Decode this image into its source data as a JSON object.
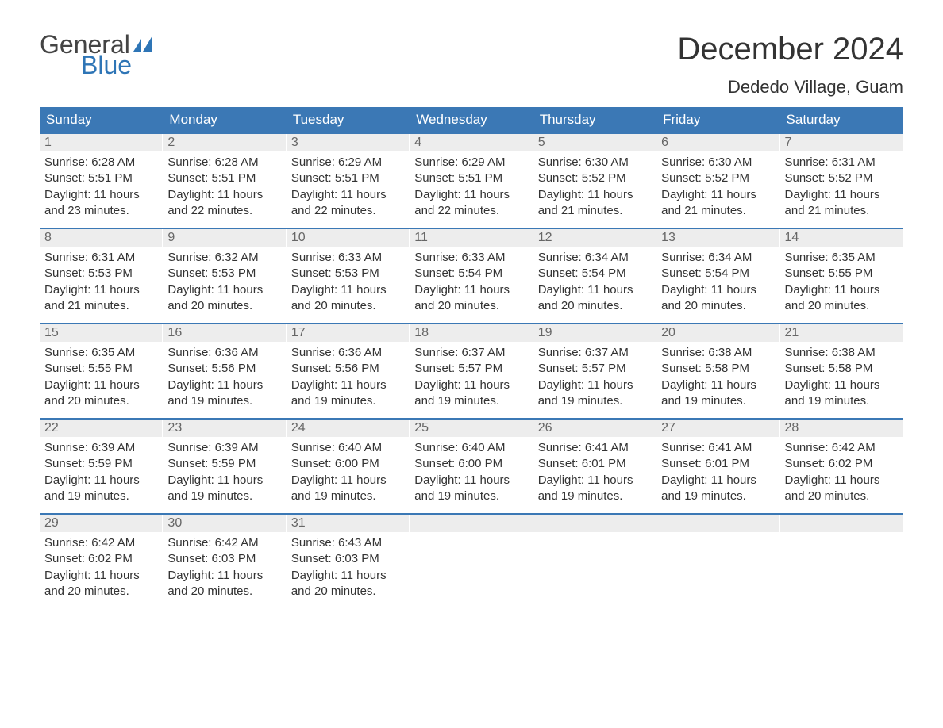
{
  "logo": {
    "text1": "General",
    "text2": "Blue"
  },
  "title": "December 2024",
  "location": "Dededo Village, Guam",
  "colors": {
    "header_bg": "#3b78b5",
    "header_text": "#ffffff",
    "daynum_bg": "#ededed",
    "daynum_text": "#666666",
    "body_text": "#333333",
    "week_border": "#3b78b5",
    "logo_blue": "#2e75b6"
  },
  "weekdays": [
    "Sunday",
    "Monday",
    "Tuesday",
    "Wednesday",
    "Thursday",
    "Friday",
    "Saturday"
  ],
  "weeks": [
    [
      {
        "n": "1",
        "sunrise": "6:28 AM",
        "sunset": "5:51 PM",
        "daylight": "11 hours and 23 minutes."
      },
      {
        "n": "2",
        "sunrise": "6:28 AM",
        "sunset": "5:51 PM",
        "daylight": "11 hours and 22 minutes."
      },
      {
        "n": "3",
        "sunrise": "6:29 AM",
        "sunset": "5:51 PM",
        "daylight": "11 hours and 22 minutes."
      },
      {
        "n": "4",
        "sunrise": "6:29 AM",
        "sunset": "5:51 PM",
        "daylight": "11 hours and 22 minutes."
      },
      {
        "n": "5",
        "sunrise": "6:30 AM",
        "sunset": "5:52 PM",
        "daylight": "11 hours and 21 minutes."
      },
      {
        "n": "6",
        "sunrise": "6:30 AM",
        "sunset": "5:52 PM",
        "daylight": "11 hours and 21 minutes."
      },
      {
        "n": "7",
        "sunrise": "6:31 AM",
        "sunset": "5:52 PM",
        "daylight": "11 hours and 21 minutes."
      }
    ],
    [
      {
        "n": "8",
        "sunrise": "6:31 AM",
        "sunset": "5:53 PM",
        "daylight": "11 hours and 21 minutes."
      },
      {
        "n": "9",
        "sunrise": "6:32 AM",
        "sunset": "5:53 PM",
        "daylight": "11 hours and 20 minutes."
      },
      {
        "n": "10",
        "sunrise": "6:33 AM",
        "sunset": "5:53 PM",
        "daylight": "11 hours and 20 minutes."
      },
      {
        "n": "11",
        "sunrise": "6:33 AM",
        "sunset": "5:54 PM",
        "daylight": "11 hours and 20 minutes."
      },
      {
        "n": "12",
        "sunrise": "6:34 AM",
        "sunset": "5:54 PM",
        "daylight": "11 hours and 20 minutes."
      },
      {
        "n": "13",
        "sunrise": "6:34 AM",
        "sunset": "5:54 PM",
        "daylight": "11 hours and 20 minutes."
      },
      {
        "n": "14",
        "sunrise": "6:35 AM",
        "sunset": "5:55 PM",
        "daylight": "11 hours and 20 minutes."
      }
    ],
    [
      {
        "n": "15",
        "sunrise": "6:35 AM",
        "sunset": "5:55 PM",
        "daylight": "11 hours and 20 minutes."
      },
      {
        "n": "16",
        "sunrise": "6:36 AM",
        "sunset": "5:56 PM",
        "daylight": "11 hours and 19 minutes."
      },
      {
        "n": "17",
        "sunrise": "6:36 AM",
        "sunset": "5:56 PM",
        "daylight": "11 hours and 19 minutes."
      },
      {
        "n": "18",
        "sunrise": "6:37 AM",
        "sunset": "5:57 PM",
        "daylight": "11 hours and 19 minutes."
      },
      {
        "n": "19",
        "sunrise": "6:37 AM",
        "sunset": "5:57 PM",
        "daylight": "11 hours and 19 minutes."
      },
      {
        "n": "20",
        "sunrise": "6:38 AM",
        "sunset": "5:58 PM",
        "daylight": "11 hours and 19 minutes."
      },
      {
        "n": "21",
        "sunrise": "6:38 AM",
        "sunset": "5:58 PM",
        "daylight": "11 hours and 19 minutes."
      }
    ],
    [
      {
        "n": "22",
        "sunrise": "6:39 AM",
        "sunset": "5:59 PM",
        "daylight": "11 hours and 19 minutes."
      },
      {
        "n": "23",
        "sunrise": "6:39 AM",
        "sunset": "5:59 PM",
        "daylight": "11 hours and 19 minutes."
      },
      {
        "n": "24",
        "sunrise": "6:40 AM",
        "sunset": "6:00 PM",
        "daylight": "11 hours and 19 minutes."
      },
      {
        "n": "25",
        "sunrise": "6:40 AM",
        "sunset": "6:00 PM",
        "daylight": "11 hours and 19 minutes."
      },
      {
        "n": "26",
        "sunrise": "6:41 AM",
        "sunset": "6:01 PM",
        "daylight": "11 hours and 19 minutes."
      },
      {
        "n": "27",
        "sunrise": "6:41 AM",
        "sunset": "6:01 PM",
        "daylight": "11 hours and 19 minutes."
      },
      {
        "n": "28",
        "sunrise": "6:42 AM",
        "sunset": "6:02 PM",
        "daylight": "11 hours and 20 minutes."
      }
    ],
    [
      {
        "n": "29",
        "sunrise": "6:42 AM",
        "sunset": "6:02 PM",
        "daylight": "11 hours and 20 minutes."
      },
      {
        "n": "30",
        "sunrise": "6:42 AM",
        "sunset": "6:03 PM",
        "daylight": "11 hours and 20 minutes."
      },
      {
        "n": "31",
        "sunrise": "6:43 AM",
        "sunset": "6:03 PM",
        "daylight": "11 hours and 20 minutes."
      },
      null,
      null,
      null,
      null
    ]
  ],
  "labels": {
    "sunrise": "Sunrise:",
    "sunset": "Sunset:",
    "daylight": "Daylight:"
  }
}
